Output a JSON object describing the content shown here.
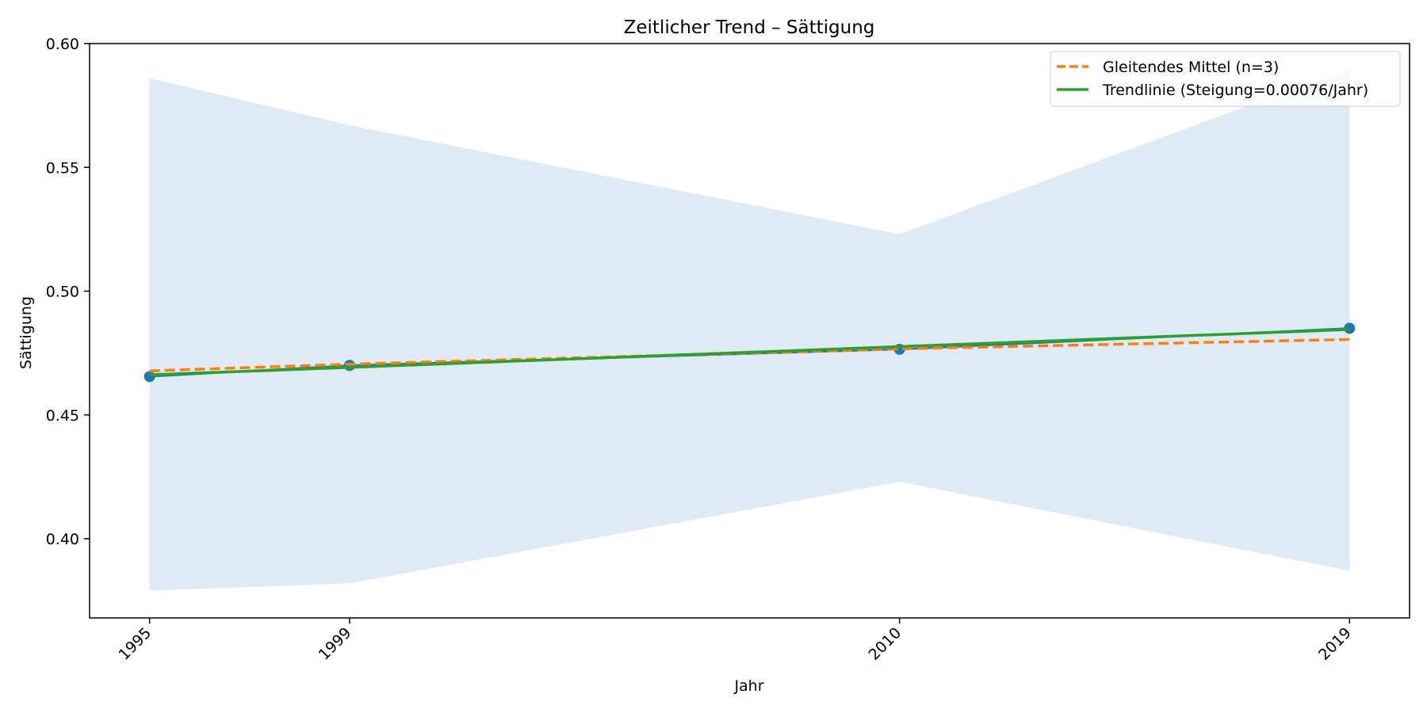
{
  "chart_data": {
    "type": "line",
    "title": "Zeitlicher Trend – Sättigung",
    "xlabel": "Jahr",
    "ylabel": "Sättigung",
    "x": [
      1995,
      1999,
      2010,
      2019
    ],
    "x_tick_labels": [
      "1995",
      "1999",
      "2010",
      "2019"
    ],
    "xlim": [
      1993.8,
      2020.2
    ],
    "ylim": [
      0.368,
      0.6
    ],
    "y_ticks": [
      0.4,
      0.45,
      0.5,
      0.55,
      0.6
    ],
    "y_tick_labels": [
      "0.40",
      "0.45",
      "0.50",
      "0.55",
      "0.60"
    ],
    "grid": false,
    "legend_position": "top-right",
    "series": [
      {
        "name": "",
        "kind": "points",
        "values": [
          0.4655,
          0.47,
          0.4765,
          0.485
        ],
        "color": "#1f77b4"
      },
      {
        "name": "Gleitendes Mittel (n=3)",
        "kind": "dashed-line",
        "values": [
          0.4678,
          0.4705,
          0.4767,
          0.4805
        ],
        "color": "#ff7f0e"
      },
      {
        "name": "Trendlinie (Steigung=0.00076/Jahr)",
        "kind": "line",
        "values": [
          0.4662,
          0.4692,
          0.4776,
          0.4845
        ],
        "color": "#2ca02c"
      }
    ],
    "band": {
      "upper": [
        0.586,
        0.567,
        0.523,
        0.59
      ],
      "lower": [
        0.379,
        0.382,
        0.423,
        0.387
      ],
      "color": "#1f77b4",
      "opacity": 0.15
    }
  }
}
